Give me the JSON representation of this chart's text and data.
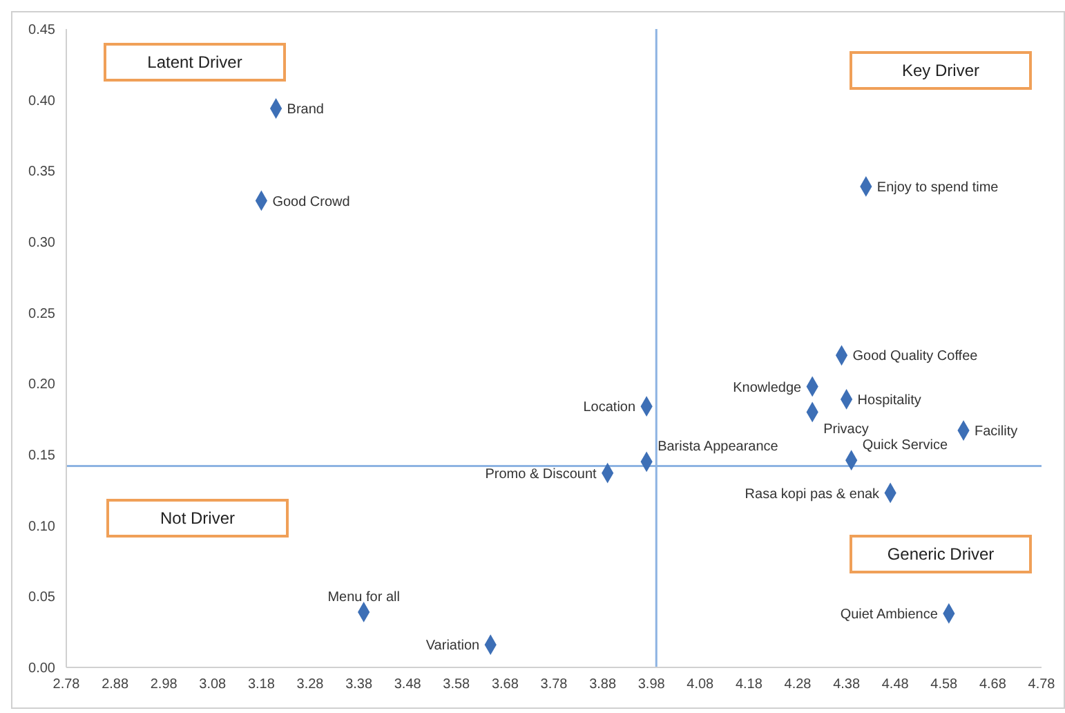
{
  "chart_data": {
    "type": "scatter",
    "series": [
      {
        "color": "#3d6fb6",
        "x": [
          3.21,
          3.18,
          4.42,
          4.37,
          4.31,
          4.38,
          4.31,
          4.62,
          3.97,
          3.97,
          3.89,
          4.39,
          4.47,
          4.59,
          3.39,
          3.65
        ],
        "values": [
          0.394,
          0.329,
          0.339,
          0.22,
          0.198,
          0.189,
          0.18,
          0.167,
          0.184,
          0.145,
          0.137,
          0.146,
          0.123,
          0.038,
          0.039,
          0.016
        ]
      }
    ],
    "marker": "diamond",
    "xlim": [
      2.78,
      4.78
    ],
    "xticks": [
      2.78,
      2.88,
      2.98,
      3.08,
      3.18,
      3.28,
      3.38,
      3.48,
      3.58,
      3.68,
      3.78,
      3.88,
      3.98,
      4.08,
      4.18,
      4.28,
      4.38,
      4.48,
      4.58,
      4.68,
      4.78
    ],
    "ylim": [
      0,
      0.45
    ],
    "yticks": [
      {
        "value": 0,
        "label": "0.00"
      },
      {
        "value": 0.05,
        "label": "0.05"
      },
      {
        "value": 0.1,
        "label": "0.10"
      },
      {
        "value": 0.15,
        "label": "0.15"
      },
      {
        "value": 0.2,
        "label": "0.20"
      },
      {
        "value": 0.25,
        "label": "0.25"
      },
      {
        "value": 0.3,
        "label": "0.30"
      },
      {
        "value": 0.35,
        "label": "0.35"
      },
      {
        "value": 0.4,
        "label": "0.40"
      },
      {
        "value": 0.45,
        "label": "0.45"
      }
    ],
    "grid": false,
    "ref_lines": [
      {
        "axis": "x",
        "value": 3.99,
        "color": "#8db3e2"
      },
      {
        "axis": "y",
        "value": 0.142,
        "color": "#8db3e2"
      }
    ],
    "annotations": [
      "Latent Driver",
      "Key Driver",
      "Not Driver",
      "Generic Driver",
      {
        "text": "Brand",
        "x": 3.21,
        "y": 0.394
      },
      {
        "text": "Good Crowd",
        "x": 3.18,
        "y": 0.329
      },
      {
        "text": "Enjoy to spend time",
        "x": 4.42,
        "y": 0.339
      },
      {
        "text": "Good Quality Coffee",
        "x": 4.37,
        "y": 0.22
      },
      {
        "text": "Knowledge",
        "x": 4.31,
        "y": 0.198
      },
      {
        "text": "Hospitality",
        "x": 4.38,
        "y": 0.189
      },
      {
        "text": "Privacy",
        "x": 4.31,
        "y": 0.18
      },
      {
        "text": "Facility",
        "x": 4.62,
        "y": 0.167
      },
      {
        "text": "Location",
        "x": 3.97,
        "y": 0.184
      },
      {
        "text": "Barista Appearance",
        "x": 3.97,
        "y": 0.145
      },
      {
        "text": "Promo & Discount",
        "x": 3.89,
        "y": 0.137
      },
      {
        "text": "Quick Service",
        "x": 4.39,
        "y": 0.146
      },
      {
        "text": "Rasa kopi pas & enak",
        "x": 4.47,
        "y": 0.123
      },
      {
        "text": "Quiet Ambience",
        "x": 4.59,
        "y": 0.038
      },
      {
        "text": "Menu for all",
        "x": 3.39,
        "y": 0.039
      },
      {
        "text": "Variation",
        "x": 3.65,
        "y": 0.016
      }
    ]
  }
}
